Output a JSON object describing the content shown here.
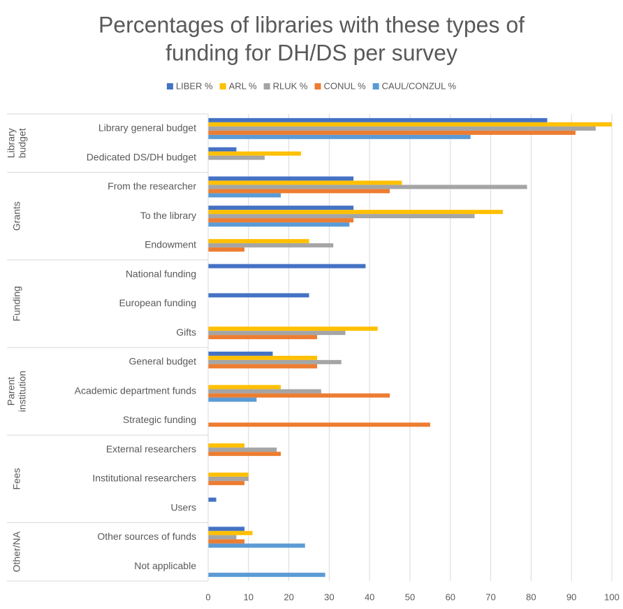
{
  "chart_data": {
    "type": "barh",
    "title": [
      "Percentages of libraries with these types of",
      "funding for DH/DS per survey"
    ],
    "groups": [
      {
        "name": [
          "Library",
          "budget"
        ],
        "categories": [
          "Library general budget",
          "Dedicated DS/DH budget"
        ]
      },
      {
        "name": [
          "Grants"
        ],
        "categories": [
          "From the researcher",
          "To the library",
          "Endowment"
        ]
      },
      {
        "name": [
          "Funding"
        ],
        "categories": [
          "National funding",
          "European funding",
          "Gifts"
        ]
      },
      {
        "name": [
          "Parent",
          "institution"
        ],
        "categories": [
          "General budget",
          "Academic department funds",
          "Strategic funding"
        ]
      },
      {
        "name": [
          "Fees"
        ],
        "categories": [
          "External researchers",
          "Institutional researchers",
          "Users"
        ]
      },
      {
        "name": [
          "Other/NA"
        ],
        "categories": [
          "Other sources of funds",
          "Not applicable"
        ]
      }
    ],
    "series": [
      {
        "name": "LIBER %",
        "color": "#4472c4",
        "values": [
          84,
          7,
          36,
          36,
          null,
          39,
          25,
          null,
          16,
          null,
          null,
          null,
          null,
          2,
          9,
          null
        ]
      },
      {
        "name": "ARL %",
        "color": "#ffc000",
        "values": [
          100,
          23,
          48,
          73,
          25,
          null,
          null,
          42,
          27,
          18,
          null,
          9,
          10,
          null,
          11,
          null
        ]
      },
      {
        "name": "RLUK %",
        "color": "#a5a5a5",
        "values": [
          96,
          14,
          79,
          66,
          31,
          null,
          null,
          34,
          33,
          28,
          null,
          17,
          10,
          null,
          7,
          null
        ]
      },
      {
        "name": "CONUL %",
        "color": "#ed7d31",
        "values": [
          91,
          null,
          45,
          36,
          9,
          null,
          null,
          27,
          27,
          45,
          55,
          18,
          9,
          null,
          9,
          null
        ]
      },
      {
        "name": "CAUL/CONZUL %",
        "color": "#5b9bd5",
        "values": [
          65,
          null,
          18,
          35,
          null,
          null,
          null,
          null,
          null,
          12,
          null,
          null,
          null,
          null,
          24,
          29
        ]
      }
    ],
    "xlim": [
      0,
      100
    ],
    "xticks": [
      0,
      10,
      20,
      30,
      40,
      50,
      60,
      70,
      80,
      90,
      100
    ],
    "grid": true
  }
}
